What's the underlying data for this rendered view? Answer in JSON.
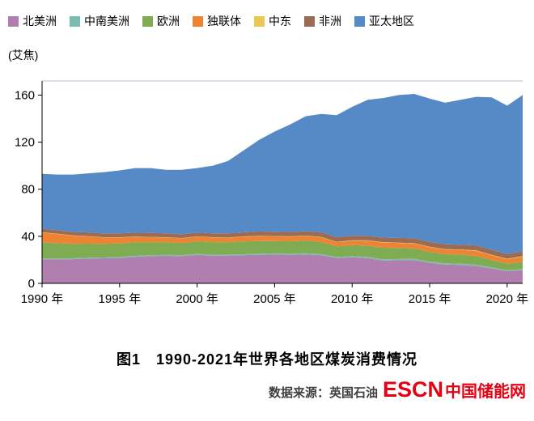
{
  "chart_data": {
    "type": "area",
    "stacked": true,
    "title": "图1　1990-2021年世界各地区煤炭消费情况",
    "unit_label": "(艾焦)",
    "ymax": 172,
    "x": [
      1990,
      1991,
      1992,
      1993,
      1994,
      1995,
      1996,
      1997,
      1998,
      1999,
      2000,
      2001,
      2002,
      2003,
      2004,
      2005,
      2006,
      2007,
      2008,
      2009,
      2010,
      2011,
      2012,
      2013,
      2014,
      2015,
      2016,
      2017,
      2018,
      2019,
      2020,
      2021
    ],
    "x_ticks": [
      {
        "value": 1990,
        "label": "1990 年"
      },
      {
        "value": 1995,
        "label": "1995 年"
      },
      {
        "value": 2000,
        "label": "2000 年"
      },
      {
        "value": 2005,
        "label": "2005 年"
      },
      {
        "value": 2010,
        "label": "2010 年"
      },
      {
        "value": 2015,
        "label": "2015 年"
      },
      {
        "value": 2020,
        "label": "2020 年"
      }
    ],
    "y_ticks": [
      {
        "value": 0,
        "label": "0"
      },
      {
        "value": 40,
        "label": "40"
      },
      {
        "value": 80,
        "label": "80"
      },
      {
        "value": 120,
        "label": "120"
      },
      {
        "value": 160,
        "label": "160"
      }
    ],
    "series": [
      {
        "name": "北美洲",
        "color": "#b07fb0",
        "values": [
          20.5,
          20.4,
          20.6,
          21.2,
          21.3,
          21.6,
          22.6,
          23.2,
          23.4,
          23.2,
          24.3,
          23.6,
          23.7,
          24.0,
          24.3,
          24.6,
          24.2,
          24.6,
          24.0,
          21.5,
          22.2,
          21.4,
          19.4,
          19.6,
          19.8,
          17.5,
          16.0,
          15.7,
          14.8,
          12.7,
          10.3,
          11.3
        ]
      },
      {
        "name": "中南美洲",
        "color": "#7cbcb0",
        "values": [
          0.7,
          0.7,
          0.7,
          0.7,
          0.7,
          0.8,
          0.8,
          0.8,
          0.8,
          0.8,
          0.8,
          0.8,
          0.8,
          0.8,
          0.9,
          0.9,
          0.9,
          1.0,
          1.0,
          0.9,
          1.0,
          1.0,
          1.1,
          1.1,
          1.1,
          1.1,
          1.0,
          1.0,
          1.0,
          0.9,
          0.8,
          0.9
        ]
      },
      {
        "name": "欧洲",
        "color": "#7fab52",
        "values": [
          13.5,
          13.0,
          12.2,
          11.8,
          11.5,
          11.6,
          11.5,
          11.0,
          10.8,
          10.3,
          10.5,
          10.6,
          10.5,
          10.9,
          10.8,
          10.5,
          10.6,
          10.7,
          10.1,
          9.0,
          9.3,
          9.6,
          9.8,
          9.4,
          8.7,
          8.2,
          7.8,
          7.7,
          7.5,
          6.2,
          5.5,
          6.2
        ]
      },
      {
        "name": "独联体",
        "color": "#ee8433",
        "values": [
          8.5,
          7.8,
          7.0,
          6.3,
          5.5,
          5.0,
          4.6,
          4.2,
          4.0,
          4.0,
          4.1,
          4.0,
          3.9,
          4.0,
          4.0,
          3.9,
          4.0,
          4.0,
          4.1,
          3.6,
          3.8,
          4.2,
          4.4,
          4.2,
          4.2,
          4.1,
          4.0,
          4.1,
          4.3,
          4.1,
          3.9,
          4.3
        ]
      },
      {
        "name": "中东",
        "color": "#e9c856",
        "values": [
          0.2,
          0.2,
          0.2,
          0.2,
          0.2,
          0.2,
          0.2,
          0.2,
          0.2,
          0.2,
          0.2,
          0.2,
          0.2,
          0.2,
          0.3,
          0.3,
          0.3,
          0.3,
          0.3,
          0.3,
          0.3,
          0.3,
          0.3,
          0.3,
          0.3,
          0.3,
          0.3,
          0.3,
          0.4,
          0.4,
          0.4,
          0.4
        ]
      },
      {
        "name": "非洲",
        "color": "#9b6b54",
        "values": [
          3.0,
          3.0,
          3.0,
          3.1,
          3.2,
          3.3,
          3.4,
          3.4,
          3.3,
          3.2,
          3.3,
          3.3,
          3.4,
          3.5,
          3.7,
          3.6,
          3.6,
          3.7,
          3.9,
          3.9,
          3.9,
          3.9,
          3.9,
          4.0,
          4.2,
          4.1,
          4.2,
          4.1,
          4.2,
          4.2,
          3.9,
          4.1
        ]
      },
      {
        "name": "亚太地区",
        "color": "#568ac6",
        "values": [
          46.6,
          47.4,
          48.8,
          50.2,
          52.1,
          53.5,
          54.9,
          55.2,
          54.0,
          54.8,
          54.8,
          57.5,
          61.5,
          69.6,
          78.0,
          85.2,
          91.4,
          97.7,
          100.6,
          103.8,
          109.5,
          115.6,
          118.6,
          121.4,
          122.7,
          121.7,
          120.2,
          123.1,
          126.3,
          129.5,
          126.2,
          132.8
        ]
      }
    ],
    "colors": {
      "axis": "#000000",
      "plot_top_border": "#b3c2d6",
      "tick_label": "#000000"
    }
  },
  "caption": {
    "text": "图1　1990-2021年世界各地区煤炭消费情况"
  },
  "source": {
    "prefix": "数据来源：英国石油",
    "logo_text": "ESCN",
    "brand_text": "中国储能网"
  }
}
